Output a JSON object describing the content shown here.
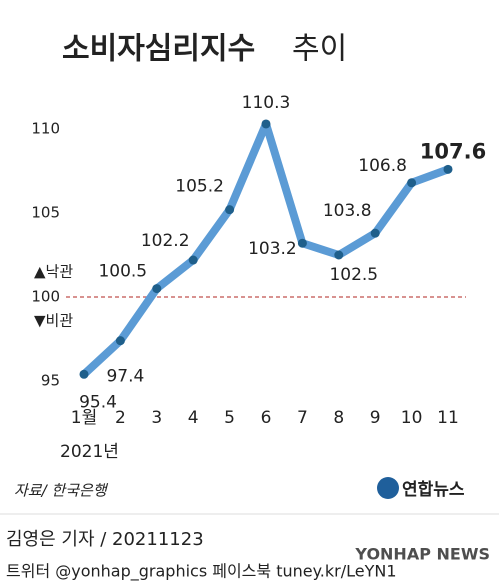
{
  "chart_data": {
    "type": "line",
    "title": "소비자심리지수",
    "title_suffix": "추이",
    "categories": [
      "1월",
      "2",
      "3",
      "4",
      "5",
      "6",
      "7",
      "8",
      "9",
      "10",
      "11"
    ],
    "x_axis_note": "2021년",
    "values": [
      95.4,
      97.4,
      100.5,
      102.2,
      105.2,
      110.3,
      103.2,
      102.5,
      103.8,
      106.8,
      107.6
    ],
    "color": "#5b9bd5",
    "marker_color": "#1f5f8b",
    "ylim": [
      94,
      112
    ],
    "yticks": [
      95,
      100,
      105,
      110
    ],
    "grid": false,
    "reference_line": 100,
    "reference_color": "#c0504d",
    "annotations": [
      "▲낙관",
      "▼비관"
    ],
    "source": "자료/ 한국은행"
  },
  "footer": {
    "logo": "연합뉴스",
    "byline": "김영은 기자 / 20211123",
    "social": "트위터 @yonhap_graphics  페이스북 tuney.kr/LeYN1",
    "watermark": "YONHAP NEWS"
  }
}
